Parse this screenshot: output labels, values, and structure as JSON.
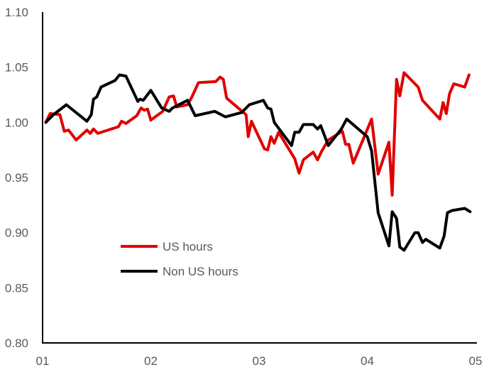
{
  "chart_data": {
    "type": "line",
    "title": "",
    "xlabel": "",
    "ylabel": "",
    "xlim": [
      1,
      5
    ],
    "ylim": [
      0.8,
      1.1
    ],
    "x_ticks": [
      1,
      2,
      3,
      4,
      5
    ],
    "x_tick_labels": [
      "01",
      "02",
      "03",
      "04",
      "05"
    ],
    "y_ticks": [
      0.8,
      0.85,
      0.9,
      0.95,
      1.0,
      1.05,
      1.1
    ],
    "y_tick_labels": [
      "0.80",
      "0.85",
      "0.90",
      "0.95",
      "1.00",
      "1.05",
      "1.10"
    ],
    "grid": false,
    "legend_position": "bottom-left",
    "series": [
      {
        "name": "US hours",
        "color": "#e00000",
        "points": [
          [
            1.03,
            1.0
          ],
          [
            1.07,
            1.008
          ],
          [
            1.16,
            1.007
          ],
          [
            1.2,
            0.992
          ],
          [
            1.24,
            0.993
          ],
          [
            1.31,
            0.984
          ],
          [
            1.41,
            0.993
          ],
          [
            1.44,
            0.99
          ],
          [
            1.47,
            0.994
          ],
          [
            1.51,
            0.99
          ],
          [
            1.7,
            0.996
          ],
          [
            1.73,
            1.001
          ],
          [
            1.77,
            0.999
          ],
          [
            1.87,
            1.006
          ],
          [
            1.91,
            1.013
          ],
          [
            1.94,
            1.011
          ],
          [
            1.97,
            1.012
          ],
          [
            2.0,
            1.002
          ],
          [
            2.11,
            1.01
          ],
          [
            2.17,
            1.023
          ],
          [
            2.21,
            1.024
          ],
          [
            2.24,
            1.014
          ],
          [
            2.34,
            1.016
          ],
          [
            2.38,
            1.023
          ],
          [
            2.44,
            1.036
          ],
          [
            2.6,
            1.037
          ],
          [
            2.64,
            1.041
          ],
          [
            2.67,
            1.039
          ],
          [
            2.7,
            1.022
          ],
          [
            2.82,
            1.012
          ],
          [
            2.88,
            1.007
          ],
          [
            2.9,
            0.987
          ],
          [
            2.93,
            1.001
          ],
          [
            3.05,
            0.976
          ],
          [
            3.08,
            0.975
          ],
          [
            3.11,
            0.987
          ],
          [
            3.14,
            0.981
          ],
          [
            3.18,
            0.991
          ],
          [
            3.33,
            0.967
          ],
          [
            3.37,
            0.954
          ],
          [
            3.41,
            0.966
          ],
          [
            3.5,
            0.973
          ],
          [
            3.54,
            0.966
          ],
          [
            3.58,
            0.974
          ],
          [
            3.64,
            0.984
          ],
          [
            3.77,
            0.992
          ],
          [
            3.8,
            0.98
          ],
          [
            3.83,
            0.98
          ],
          [
            3.87,
            0.963
          ],
          [
            4.04,
            1.003
          ],
          [
            4.1,
            0.953
          ],
          [
            4.2,
            0.982
          ],
          [
            4.23,
            0.934
          ],
          [
            4.27,
            1.039
          ],
          [
            4.3,
            1.024
          ],
          [
            4.34,
            1.045
          ],
          [
            4.47,
            1.032
          ],
          [
            4.51,
            1.02
          ],
          [
            4.67,
            1.003
          ],
          [
            4.7,
            1.018
          ],
          [
            4.73,
            1.008
          ],
          [
            4.76,
            1.026
          ],
          [
            4.8,
            1.035
          ],
          [
            4.9,
            1.032
          ],
          [
            4.94,
            1.043
          ]
        ]
      },
      {
        "name": "Non US hours",
        "color": "#000000",
        "points": [
          [
            1.03,
            1.0
          ],
          [
            1.1,
            1.007
          ],
          [
            1.22,
            1.016
          ],
          [
            1.41,
            1.001
          ],
          [
            1.45,
            1.007
          ],
          [
            1.47,
            1.021
          ],
          [
            1.5,
            1.023
          ],
          [
            1.54,
            1.032
          ],
          [
            1.67,
            1.038
          ],
          [
            1.71,
            1.043
          ],
          [
            1.77,
            1.042
          ],
          [
            1.88,
            1.019
          ],
          [
            1.9,
            1.021
          ],
          [
            1.93,
            1.02
          ],
          [
            2.0,
            1.029
          ],
          [
            2.1,
            1.013
          ],
          [
            2.17,
            1.01
          ],
          [
            2.2,
            1.013
          ],
          [
            2.34,
            1.02
          ],
          [
            2.41,
            1.006
          ],
          [
            2.59,
            1.01
          ],
          [
            2.69,
            1.005
          ],
          [
            2.84,
            1.009
          ],
          [
            2.91,
            1.016
          ],
          [
            3.04,
            1.02
          ],
          [
            3.08,
            1.013
          ],
          [
            3.11,
            1.012
          ],
          [
            3.14,
            1.0
          ],
          [
            3.3,
            0.979
          ],
          [
            3.33,
            0.991
          ],
          [
            3.37,
            0.991
          ],
          [
            3.41,
            0.998
          ],
          [
            3.5,
            0.998
          ],
          [
            3.54,
            0.994
          ],
          [
            3.57,
            0.997
          ],
          [
            3.64,
            0.979
          ],
          [
            3.76,
            0.994
          ],
          [
            3.81,
            1.003
          ],
          [
            4.0,
            0.987
          ],
          [
            4.04,
            0.974
          ],
          [
            4.1,
            0.918
          ],
          [
            4.2,
            0.888
          ],
          [
            4.23,
            0.919
          ],
          [
            4.27,
            0.913
          ],
          [
            4.3,
            0.887
          ],
          [
            4.34,
            0.884
          ],
          [
            4.44,
            0.9
          ],
          [
            4.47,
            0.9
          ],
          [
            4.51,
            0.891
          ],
          [
            4.54,
            0.894
          ],
          [
            4.67,
            0.886
          ],
          [
            4.71,
            0.897
          ],
          [
            4.74,
            0.918
          ],
          [
            4.78,
            0.92
          ],
          [
            4.9,
            0.922
          ],
          [
            4.95,
            0.919
          ]
        ]
      }
    ]
  }
}
